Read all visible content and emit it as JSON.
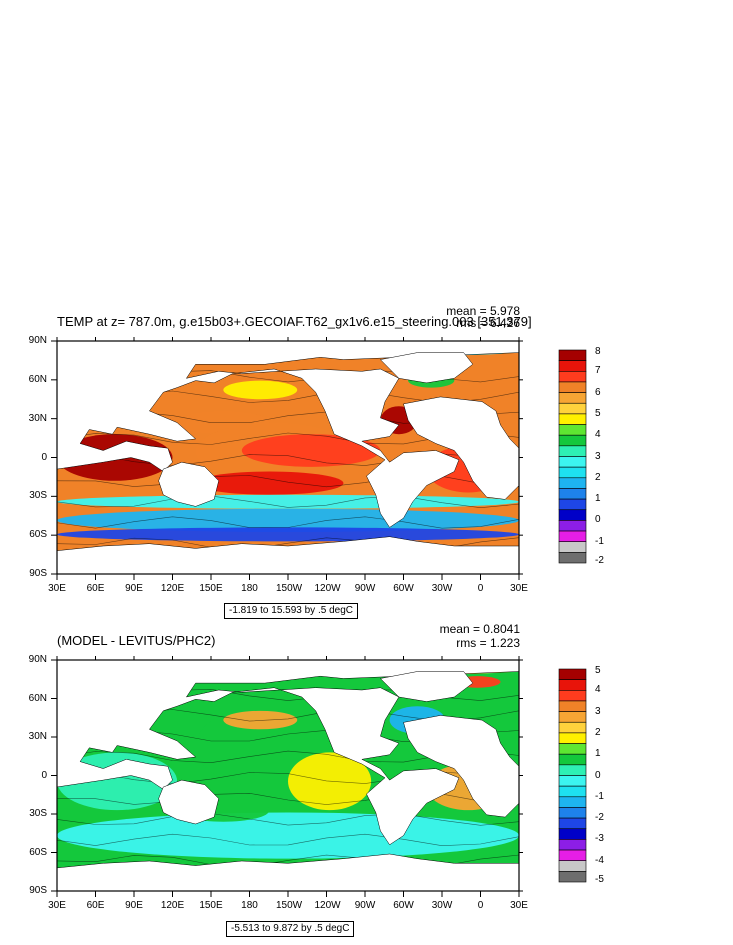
{
  "chart_data": [
    {
      "type": "heatmap",
      "title": "TEMP at z= 787.0m, g.e15b03+.GECOIAF.T62_gx1v6.e15_steering.003 [351,379]",
      "mean_label": "mean = 5.978",
      "rms_label": "rms = 6.426",
      "contour_info": "-1.819 to 15.593 by .5 degC",
      "x_ticks": [
        "30E",
        "60E",
        "90E",
        "120E",
        "150E",
        "180",
        "150W",
        "120W",
        "90W",
        "60W",
        "30W",
        "0",
        "30E"
      ],
      "y_ticks": [
        "90N",
        "60N",
        "30N",
        "0",
        "30S",
        "60S",
        "90S"
      ],
      "colorbar": {
        "labels": [
          "8",
          "7",
          "6",
          "5",
          "4",
          "3",
          "2",
          "1",
          "0",
          "-1",
          "-2"
        ],
        "colors": [
          "#a50000",
          "#e8140a",
          "#ff3c1e",
          "#f08228",
          "#f7a534",
          "#ffd23c",
          "#fff000",
          "#5ee632",
          "#14c83c",
          "#2ef0b4",
          "#3cf5f0",
          "#1ee1f0",
          "#1eb4f0",
          "#1e82eb",
          "#1e46e6",
          "#0000c8",
          "#8c1ee6",
          "#e61ee6",
          "#c8c8c8",
          "#6e6e6e"
        ]
      }
    },
    {
      "type": "heatmap",
      "title": "(MODEL - LEVITUS/PHC2)",
      "mean_label": "mean = 0.8041",
      "rms_label": "rms = 1.223",
      "contour_info": "-5.513 to 9.872 by .5 degC",
      "x_ticks": [
        "30E",
        "60E",
        "90E",
        "120E",
        "150E",
        "180",
        "150W",
        "120W",
        "90W",
        "60W",
        "30W",
        "0",
        "30E"
      ],
      "y_ticks": [
        "90N",
        "60N",
        "30N",
        "0",
        "30S",
        "60S",
        "90S"
      ],
      "colorbar": {
        "labels": [
          "5",
          "4",
          "3",
          "2",
          "1",
          "0",
          "-1",
          "-2",
          "-3",
          "-4",
          "-5"
        ],
        "colors": [
          "#a50000",
          "#e8140a",
          "#ff3c1e",
          "#f08228",
          "#f7a534",
          "#ffd23c",
          "#fff000",
          "#5ee632",
          "#14c83c",
          "#2ef0b4",
          "#3cf5f0",
          "#1ee1f0",
          "#1eb4f0",
          "#1e82eb",
          "#1e46e6",
          "#0000c8",
          "#8c1ee6",
          "#e61ee6",
          "#c8c8c8",
          "#6e6e6e"
        ]
      }
    }
  ]
}
